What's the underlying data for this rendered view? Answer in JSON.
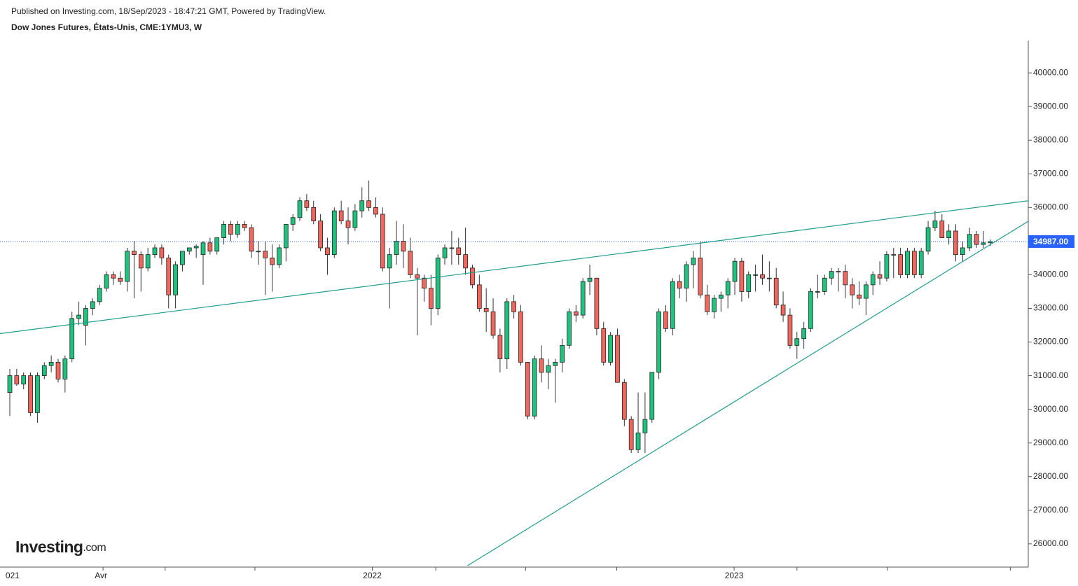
{
  "chart_data": {
    "type": "candlestick",
    "published": "Published on Investing.com, 18/Sep/2023 - 18:47:21 GMT, Powered by TradingView.",
    "title": "Dow Jones Futures, États-Unis, CME:1YMU3, W",
    "logo": "Investing",
    "logo_suffix": ".com",
    "up_color": "#20c37d",
    "down_color": "#f0675d",
    "trend_color": "#1f9e8c",
    "price_line_color": "#2962ff",
    "ylim": [
      25310,
      40960
    ],
    "yticks": [
      {
        "value": 26000,
        "label": "26000.00"
      },
      {
        "value": 27000,
        "label": "27000.00"
      },
      {
        "value": 28000,
        "label": "28000.00"
      },
      {
        "value": 29000,
        "label": "29000.00"
      },
      {
        "value": 30000,
        "label": "30000.00"
      },
      {
        "value": 31000,
        "label": "31000.00"
      },
      {
        "value": 32000,
        "label": "32000.00"
      },
      {
        "value": 33000,
        "label": "33000.00"
      },
      {
        "value": 34000,
        "label": "34000.00"
      },
      {
        "value": 35000,
        "label": "35000.00"
      },
      {
        "value": 36000,
        "label": "36000.00"
      },
      {
        "value": 37000,
        "label": "37000.00"
      },
      {
        "value": 38000,
        "label": "38000.00"
      },
      {
        "value": 39000,
        "label": "39000.00"
      },
      {
        "value": 40000,
        "label": "40000.00"
      }
    ],
    "xlim": [
      -1.42,
      147.5
    ],
    "xticks": [
      {
        "value": 0.4,
        "label": "021"
      },
      {
        "value": 13.2,
        "label": "Avr"
      },
      {
        "value": 52.5,
        "label": "2022"
      },
      {
        "value": 104.9,
        "label": "2023"
      }
    ],
    "xminor_ticks": [
      13.5,
      22.5,
      35.5,
      52.5,
      61.7,
      74.7,
      87.9,
      104.9,
      114,
      127.1,
      144.9
    ],
    "last_price": 34987,
    "last_price_label": "34987.00",
    "trend_lines": [
      {
        "start": [
          -1.42,
          32250
        ],
        "end": [
          147.5,
          36200
        ]
      },
      {
        "start": [
          66.3,
          25355
        ],
        "end": [
          147.5,
          35590
        ]
      }
    ],
    "candles": [
      [
        30500,
        31200,
        29800,
        31000
      ],
      [
        31000,
        31200,
        30700,
        30750
      ],
      [
        30750,
        31100,
        30600,
        31000
      ],
      [
        31000,
        31100,
        29800,
        29900
      ],
      [
        29900,
        31100,
        29600,
        31000
      ],
      [
        31000,
        31400,
        30900,
        31300
      ],
      [
        31300,
        31600,
        31100,
        31400
      ],
      [
        31400,
        31500,
        30800,
        30900
      ],
      [
        30900,
        31600,
        30500,
        31500
      ],
      [
        31500,
        32900,
        31400,
        32700
      ],
      [
        32700,
        33200,
        32500,
        32800
      ],
      [
        32500,
        33100,
        31900,
        33000
      ],
      [
        33000,
        33300,
        32800,
        33200
      ],
      [
        33200,
        33700,
        33100,
        33600
      ],
      [
        33600,
        34100,
        33500,
        34000
      ],
      [
        34000,
        34100,
        33700,
        33900
      ],
      [
        33900,
        34100,
        33700,
        33800
      ],
      [
        33800,
        34800,
        33500,
        34700
      ],
      [
        34700,
        35000,
        33300,
        34600
      ],
      [
        34600,
        34700,
        33500,
        34200
      ],
      [
        34200,
        34800,
        34100,
        34600
      ],
      [
        34600,
        34900,
        34500,
        34800
      ],
      [
        34800,
        34900,
        34300,
        34500
      ],
      [
        34500,
        34600,
        33000,
        33400
      ],
      [
        33400,
        34400,
        33000,
        34300
      ],
      [
        34300,
        34700,
        34100,
        34700
      ],
      [
        34700,
        34800,
        34600,
        34800
      ],
      [
        34800,
        34900,
        34500,
        34850
      ],
      [
        34600,
        35000,
        33700,
        34950
      ],
      [
        34950,
        35100,
        34600,
        34700
      ],
      [
        34700,
        35100,
        34600,
        35100
      ],
      [
        35100,
        35600,
        34900,
        35500
      ],
      [
        35500,
        35600,
        35000,
        35200
      ],
      [
        35200,
        35600,
        35100,
        35500
      ],
      [
        35500,
        35600,
        35300,
        35400
      ],
      [
        35400,
        35500,
        34500,
        34700
      ],
      [
        34700,
        35000,
        34300,
        34700
      ],
      [
        34700,
        35000,
        33400,
        34500
      ],
      [
        34500,
        34900,
        33500,
        34300
      ],
      [
        34300,
        34900,
        34200,
        34800
      ],
      [
        34800,
        35500,
        34400,
        35500
      ],
      [
        35500,
        35800,
        35300,
        35700
      ],
      [
        35700,
        36300,
        35600,
        36200
      ],
      [
        36200,
        36400,
        35900,
        36000
      ],
      [
        36000,
        36200,
        35500,
        35600
      ],
      [
        35600,
        35800,
        34700,
        34800
      ],
      [
        34800,
        35100,
        34000,
        34600
      ],
      [
        34600,
        36000,
        34500,
        35900
      ],
      [
        35900,
        36200,
        35500,
        35600
      ],
      [
        35600,
        36000,
        34900,
        35400
      ],
      [
        35400,
        36100,
        35300,
        35900
      ],
      [
        35900,
        36600,
        35700,
        36200
      ],
      [
        36200,
        36800,
        35900,
        36000
      ],
      [
        36000,
        36300,
        35700,
        35800
      ],
      [
        35800,
        36000,
        34100,
        34200
      ],
      [
        34200,
        34800,
        33000,
        34600
      ],
      [
        34600,
        35600,
        34300,
        35000
      ],
      [
        35000,
        35500,
        34200,
        34700
      ],
      [
        34700,
        35100,
        33900,
        34000
      ],
      [
        34000,
        34200,
        32200,
        33900
      ],
      [
        33900,
        34000,
        33200,
        33600
      ],
      [
        33600,
        34000,
        32500,
        33000
      ],
      [
        33000,
        34600,
        32800,
        34500
      ],
      [
        34500,
        34900,
        34300,
        34800
      ],
      [
        34800,
        35300,
        34300,
        34800
      ],
      [
        34800,
        35100,
        34300,
        34600
      ],
      [
        34600,
        35400,
        34000,
        34200
      ],
      [
        34200,
        34300,
        33600,
        33700
      ],
      [
        33700,
        34000,
        32900,
        33000
      ],
      [
        33000,
        33600,
        32300,
        32900
      ],
      [
        32900,
        33300,
        32100,
        32200
      ],
      [
        32200,
        32400,
        31100,
        31500
      ],
      [
        31500,
        33300,
        31200,
        33200
      ],
      [
        33200,
        33400,
        32700,
        32900
      ],
      [
        32900,
        33100,
        31300,
        31400
      ],
      [
        31400,
        31400,
        29700,
        29800
      ],
      [
        29800,
        31600,
        29700,
        31500
      ],
      [
        31500,
        31900,
        30800,
        31100
      ],
      [
        31100,
        31500,
        30600,
        31300
      ],
      [
        31300,
        31500,
        30200,
        31400
      ],
      [
        31400,
        32100,
        31100,
        31900
      ],
      [
        31900,
        33000,
        31800,
        32900
      ],
      [
        32900,
        33100,
        32600,
        32800
      ],
      [
        32800,
        33900,
        32700,
        33800
      ],
      [
        33800,
        34300,
        33400,
        33900
      ],
      [
        33900,
        33900,
        32200,
        32400
      ],
      [
        32400,
        32600,
        31300,
        31400
      ],
      [
        31400,
        32300,
        31300,
        32200
      ],
      [
        32200,
        32400,
        30800,
        30800
      ],
      [
        30800,
        30900,
        29500,
        29700
      ],
      [
        29700,
        29800,
        28700,
        28800
      ],
      [
        28800,
        30500,
        28700,
        29300
      ],
      [
        29300,
        30500,
        28700,
        29700
      ],
      [
        29700,
        31100,
        29600,
        31100
      ],
      [
        31100,
        33000,
        30900,
        32900
      ],
      [
        32900,
        33100,
        32300,
        32400
      ],
      [
        32400,
        33900,
        32200,
        33800
      ],
      [
        33800,
        34000,
        33300,
        33600
      ],
      [
        33600,
        34400,
        33200,
        34300
      ],
      [
        34300,
        34700,
        33600,
        34500
      ],
      [
        34500,
        35000,
        33300,
        33400
      ],
      [
        33400,
        33700,
        32800,
        32900
      ],
      [
        32900,
        33400,
        32700,
        33300
      ],
      [
        33300,
        33500,
        32900,
        33400
      ],
      [
        33400,
        33900,
        33000,
        33800
      ],
      [
        33800,
        34500,
        33400,
        34400
      ],
      [
        34400,
        34500,
        33200,
        33500
      ],
      [
        33500,
        34100,
        33300,
        34000
      ],
      [
        34000,
        34300,
        33500,
        34000
      ],
      [
        34000,
        34600,
        33700,
        33900
      ],
      [
        33900,
        34400,
        33500,
        33900
      ],
      [
        33900,
        34200,
        33000,
        33100
      ],
      [
        33100,
        33500,
        32600,
        32800
      ],
      [
        32800,
        33000,
        31800,
        31900
      ],
      [
        31900,
        32300,
        31500,
        32100
      ],
      [
        32100,
        32600,
        31800,
        32400
      ],
      [
        32400,
        33600,
        32300,
        33500
      ],
      [
        33500,
        34000,
        33300,
        33500
      ],
      [
        33500,
        34000,
        33400,
        33900
      ],
      [
        33900,
        34200,
        33700,
        34100
      ],
      [
        34100,
        34200,
        33500,
        34100
      ],
      [
        34100,
        34300,
        33300,
        33700
      ],
      [
        33700,
        33900,
        33000,
        33400
      ],
      [
        33400,
        33800,
        33100,
        33300
      ],
      [
        33300,
        33800,
        32800,
        33700
      ],
      [
        33700,
        34100,
        33400,
        34000
      ],
      [
        34000,
        34400,
        33700,
        33900
      ],
      [
        33900,
        34700,
        33800,
        34600
      ],
      [
        34600,
        34800,
        33900,
        34600
      ],
      [
        34600,
        34800,
        33900,
        34000
      ],
      [
        34000,
        34800,
        33900,
        34700
      ],
      [
        34700,
        34800,
        33900,
        34000
      ],
      [
        34000,
        34800,
        33900,
        34700
      ],
      [
        34700,
        35600,
        34600,
        35400
      ],
      [
        35400,
        35900,
        35300,
        35600
      ],
      [
        35600,
        35800,
        35100,
        35100
      ],
      [
        35100,
        35500,
        34900,
        35300
      ],
      [
        35300,
        35500,
        34400,
        34600
      ],
      [
        34600,
        35000,
        34400,
        34800
      ],
      [
        34800,
        35400,
        34700,
        35200
      ],
      [
        35200,
        35300,
        34800,
        34900
      ],
      [
        34900,
        35300,
        34800,
        34950
      ],
      [
        34950,
        35050,
        34850,
        34987
      ]
    ]
  }
}
